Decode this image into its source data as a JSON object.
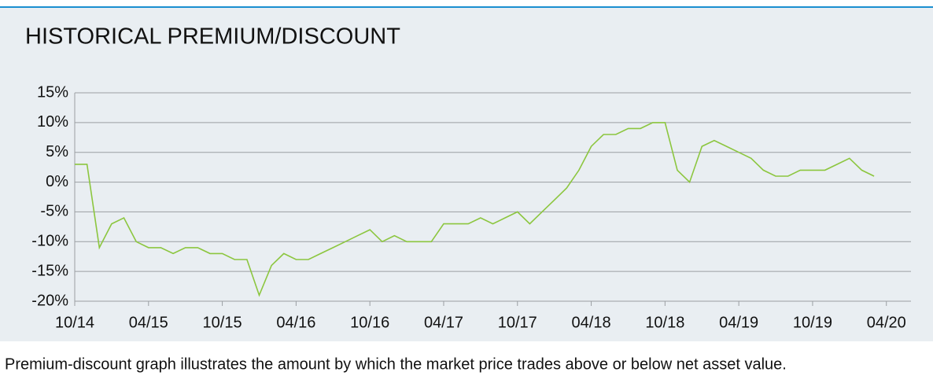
{
  "chart_data": {
    "type": "line",
    "title": "HISTORICAL PREMIUM/DISCOUNT",
    "caption": "Premium-discount graph illustrates the amount by which the market price trades above or below net asset value.",
    "x": [
      "2014-10",
      "2014-11",
      "2014-12",
      "2015-01",
      "2015-02",
      "2015-03",
      "2015-04",
      "2015-05",
      "2015-06",
      "2015-07",
      "2015-08",
      "2015-09",
      "2015-10",
      "2015-11",
      "2015-12",
      "2016-01",
      "2016-02",
      "2016-03",
      "2016-04",
      "2016-05",
      "2016-06",
      "2016-07",
      "2016-08",
      "2016-09",
      "2016-10",
      "2016-11",
      "2016-12",
      "2017-01",
      "2017-02",
      "2017-03",
      "2017-04",
      "2017-05",
      "2017-06",
      "2017-07",
      "2017-08",
      "2017-09",
      "2017-10",
      "2017-11",
      "2017-12",
      "2018-01",
      "2018-02",
      "2018-03",
      "2018-04",
      "2018-05",
      "2018-06",
      "2018-07",
      "2018-08",
      "2018-09",
      "2018-10",
      "2018-11",
      "2018-12",
      "2019-01",
      "2019-02",
      "2019-03",
      "2019-04",
      "2019-05",
      "2019-06",
      "2019-07",
      "2019-08",
      "2019-09",
      "2019-10",
      "2019-11",
      "2019-12",
      "2020-01",
      "2020-02",
      "2020-03"
    ],
    "series": [
      {
        "color": "#8cc63f",
        "values": [
          3,
          3,
          -11,
          -7,
          -6,
          -10,
          -11,
          -11,
          -12,
          -11,
          -11,
          -12,
          -12,
          -13,
          -13,
          -19,
          -14,
          -12,
          -13,
          -13,
          -12,
          -11,
          -10,
          -9,
          -8,
          -10,
          -9,
          -10,
          -10,
          -10,
          -7,
          -7,
          -7,
          -6,
          -7,
          -6,
          -5,
          -7,
          -5,
          -3,
          -1,
          2,
          6,
          8,
          8,
          9,
          9,
          10,
          10,
          2,
          0,
          6,
          7,
          6,
          5,
          4,
          2,
          1,
          1,
          2,
          2,
          2,
          3,
          4,
          2,
          1
        ]
      }
    ],
    "xlim": [
      "2014-10",
      "2020-06"
    ],
    "xticks": [
      {
        "value": "2014-10",
        "label": "10/14"
      },
      {
        "value": "2015-04",
        "label": "04/15"
      },
      {
        "value": "2015-10",
        "label": "10/15"
      },
      {
        "value": "2016-04",
        "label": "04/16"
      },
      {
        "value": "2016-10",
        "label": "10/16"
      },
      {
        "value": "2017-04",
        "label": "04/17"
      },
      {
        "value": "2017-10",
        "label": "10/17"
      },
      {
        "value": "2018-04",
        "label": "04/18"
      },
      {
        "value": "2018-10",
        "label": "10/18"
      },
      {
        "value": "2019-04",
        "label": "04/19"
      },
      {
        "value": "2019-10",
        "label": "10/19"
      },
      {
        "value": "2020-04",
        "label": "04/20"
      }
    ],
    "ylim": [
      -20,
      15
    ],
    "yticks": [
      {
        "value": 15,
        "label": "15%"
      },
      {
        "value": 10,
        "label": "10%"
      },
      {
        "value": 5,
        "label": "5%"
      },
      {
        "value": 0,
        "label": "0%"
      },
      {
        "value": -5,
        "label": "-5%"
      },
      {
        "value": -10,
        "label": "-10%"
      },
      {
        "value": -15,
        "label": "-15%"
      },
      {
        "value": -20,
        "label": "-20%"
      }
    ],
    "grid": true
  }
}
